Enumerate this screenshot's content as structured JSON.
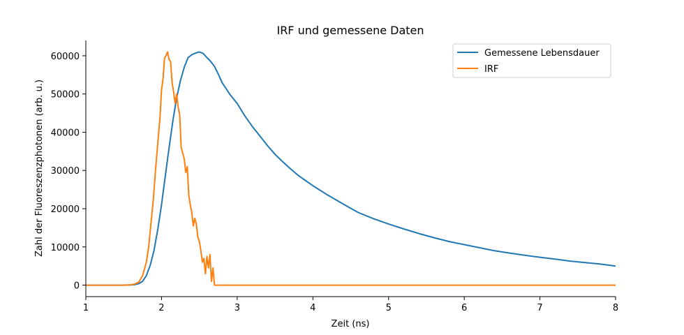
{
  "chart_data": {
    "type": "line",
    "title": "IRF und gemessene Daten",
    "xlabel": "Zeit (ns)",
    "ylabel": "Zahl der Fluoreszenzphotonen (arb. u.)",
    "xlim": [
      1,
      8
    ],
    "ylim": [
      -3000,
      64000
    ],
    "xticks": [
      1,
      2,
      3,
      4,
      5,
      6,
      7,
      8
    ],
    "yticks": [
      0,
      10000,
      20000,
      30000,
      40000,
      50000,
      60000
    ],
    "grid": false,
    "legend_position": "top-right",
    "series": [
      {
        "name": "Gemessene Lebensdauer",
        "color": "#1f77b4",
        "x": [
          1.0,
          1.5,
          1.6,
          1.65,
          1.7,
          1.75,
          1.8,
          1.85,
          1.9,
          1.95,
          2.0,
          2.05,
          2.1,
          2.15,
          2.2,
          2.25,
          2.3,
          2.35,
          2.4,
          2.45,
          2.5,
          2.55,
          2.6,
          2.65,
          2.7,
          2.75,
          2.8,
          2.85,
          2.9,
          3.0,
          3.1,
          3.2,
          3.3,
          3.4,
          3.5,
          3.6,
          3.7,
          3.8,
          3.9,
          4.0,
          4.2,
          4.4,
          4.6,
          4.8,
          5.0,
          5.2,
          5.4,
          5.6,
          5.8,
          6.0,
          6.2,
          6.4,
          6.6,
          6.8,
          7.0,
          7.2,
          7.4,
          7.6,
          7.8,
          8.0
        ],
        "y": [
          0,
          0,
          50,
          150,
          400,
          1000,
          2500,
          5200,
          9000,
          14500,
          21000,
          28500,
          36000,
          43000,
          49000,
          53500,
          57000,
          59500,
          60300,
          60700,
          61000,
          60600,
          59500,
          58500,
          57200,
          55200,
          53000,
          51500,
          50000,
          47500,
          44300,
          41500,
          39000,
          36500,
          34200,
          32300,
          30500,
          28800,
          27400,
          26000,
          23500,
          21200,
          19000,
          17400,
          16000,
          14700,
          13500,
          12400,
          11400,
          10600,
          9800,
          9000,
          8400,
          7800,
          7300,
          6800,
          6300,
          5900,
          5500,
          5000
        ]
      },
      {
        "name": "IRF",
        "color": "#ff7f0e",
        "x": [
          1.0,
          1.5,
          1.6,
          1.65,
          1.7,
          1.75,
          1.8,
          1.83,
          1.86,
          1.89,
          1.92,
          1.95,
          1.98,
          2.0,
          2.02,
          2.04,
          2.06,
          2.08,
          2.1,
          2.12,
          2.14,
          2.16,
          2.18,
          2.2,
          2.22,
          2.24,
          2.26,
          2.28,
          2.3,
          2.32,
          2.34,
          2.36,
          2.38,
          2.4,
          2.42,
          2.44,
          2.46,
          2.48,
          2.5,
          2.52,
          2.54,
          2.56,
          2.58,
          2.6,
          2.62,
          2.64,
          2.66,
          2.68,
          2.7,
          2.72,
          2.75,
          3.0,
          4.0,
          5.0,
          6.0,
          7.0,
          8.0
        ],
        "y": [
          0,
          0,
          100,
          300,
          800,
          2500,
          6000,
          10000,
          16000,
          22000,
          30000,
          37000,
          44000,
          51000,
          54000,
          59500,
          60000,
          61000,
          59000,
          58500,
          53000,
          50500,
          47500,
          50000,
          46500,
          44500,
          36000,
          34500,
          33000,
          29500,
          31000,
          23500,
          21000,
          19000,
          15500,
          17500,
          16000,
          12500,
          11500,
          9000,
          6000,
          7000,
          3000,
          7500,
          4500,
          8000,
          1000,
          4500,
          0,
          0,
          0,
          0,
          0,
          0,
          0,
          0,
          0
        ]
      }
    ]
  }
}
